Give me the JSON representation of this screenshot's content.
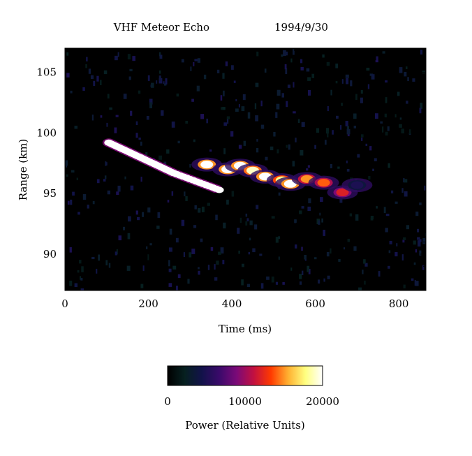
{
  "chart_data": {
    "type": "heatmap",
    "title": "VHF Meteor Echo",
    "subtitle": "1994/9/30",
    "xlabel": "Time (ms)",
    "ylabel": "Range  (km)",
    "xlim": [
      0,
      865
    ],
    "ylim": [
      87,
      107
    ],
    "x_ticks": [
      0,
      200,
      400,
      600,
      800
    ],
    "y_ticks": [
      90,
      95,
      100,
      105
    ],
    "colorbar": {
      "label": "Power (Relative Units)",
      "range": [
        0,
        20000
      ],
      "ticks": [
        0,
        10000,
        20000
      ],
      "colors": [
        "#000000",
        "#062020",
        "#12124a",
        "#3a0a6a",
        "#7a0a78",
        "#c21040",
        "#ff3a00",
        "#ffb030",
        "#ffff80",
        "#ffffff"
      ]
    },
    "head_echo": {
      "description_points": [
        {
          "time": 105,
          "range": 99.2
        },
        {
          "time": 180,
          "range": 98.0
        },
        {
          "time": 260,
          "range": 96.7
        },
        {
          "time": 370,
          "range": 95.3
        }
      ],
      "power": 20000
    },
    "trail_echo": {
      "points": [
        {
          "time": 340,
          "range": 97.4,
          "power": 20000
        },
        {
          "time": 390,
          "range": 97.0,
          "power": 20000
        },
        {
          "time": 420,
          "range": 97.3,
          "power": 20000
        },
        {
          "time": 450,
          "range": 96.9,
          "power": 19000
        },
        {
          "time": 480,
          "range": 96.4,
          "power": 20000
        },
        {
          "time": 520,
          "range": 96.1,
          "power": 18000
        },
        {
          "time": 540,
          "range": 95.8,
          "power": 20000
        },
        {
          "time": 580,
          "range": 96.2,
          "power": 15000
        },
        {
          "time": 620,
          "range": 95.9,
          "power": 14000
        },
        {
          "time": 665,
          "range": 95.1,
          "power": 12000
        },
        {
          "time": 700,
          "range": 95.7,
          "power": 5000
        }
      ]
    }
  }
}
